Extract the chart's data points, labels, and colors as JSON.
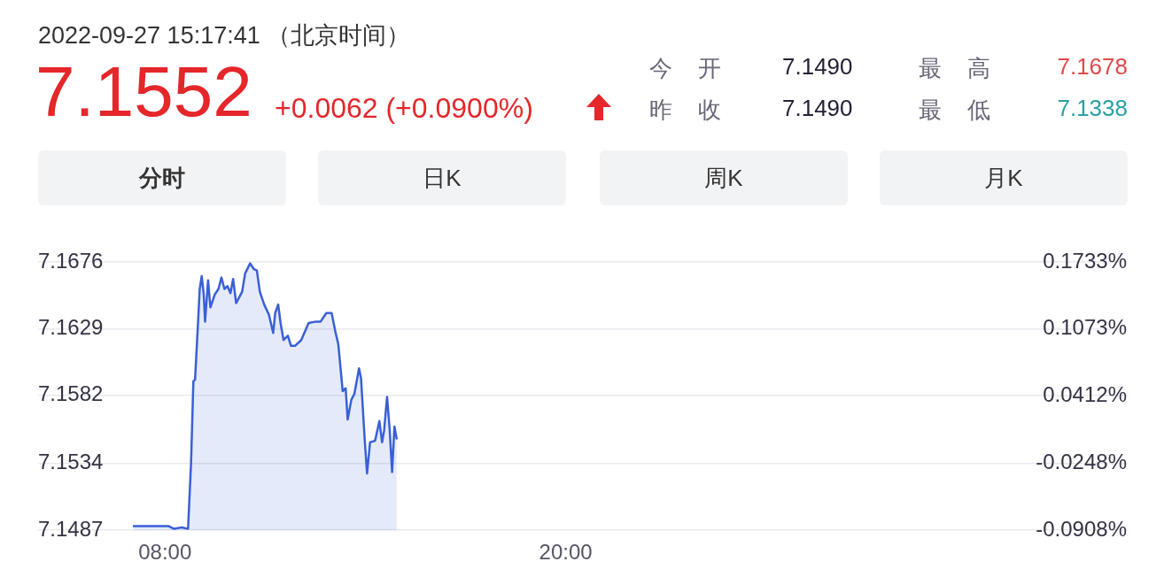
{
  "chart_data": {
    "type": "area",
    "title": "7.1552",
    "subtitle": "2022-09-27 15:17:41 （北京时间）",
    "annotations": [
      "+0.0062 (+0.0900%)",
      "今 开",
      "7.1490",
      "最 高",
      "7.1678",
      "昨 收",
      "7.1490",
      "最 低",
      "7.1338",
      "分时",
      "日K",
      "周K",
      "月K"
    ],
    "x": [
      7.04,
      8.1,
      8.27,
      8.5,
      8.69,
      8.78,
      8.85,
      8.9,
      8.98,
      9.04,
      9.1,
      9.16,
      9.2,
      9.29,
      9.36,
      9.49,
      9.6,
      9.69,
      9.78,
      9.87,
      9.96,
      10.04,
      10.13,
      10.22,
      10.31,
      10.4,
      10.55,
      10.66,
      10.75,
      10.84,
      10.97,
      11.11,
      11.24,
      11.3,
      11.39,
      11.46,
      11.55,
      11.68,
      11.77,
      11.9,
      12.08,
      12.3,
      12.52,
      12.66,
      12.83,
      12.99,
      13.1,
      13.19,
      13.32,
      13.41,
      13.47,
      13.58,
      13.67,
      13.81,
      13.87,
      13.98,
      14.05,
      14.14,
      14.29,
      14.42,
      14.5,
      14.56,
      14.65,
      14.73,
      14.8,
      14.87,
      14.94
    ],
    "series": [
      {
        "color": "#3a5fd6",
        "values": [
          7.149,
          7.149,
          7.1488,
          7.1489,
          7.1488,
          7.1534,
          7.1592,
          7.1593,
          7.1629,
          7.1657,
          7.1666,
          7.1653,
          7.1634,
          7.1663,
          7.1644,
          7.1653,
          7.1657,
          7.1665,
          7.1657,
          7.1659,
          7.1654,
          7.1664,
          7.1647,
          7.1651,
          7.1655,
          7.1668,
          7.1675,
          7.1671,
          7.167,
          7.1655,
          7.1646,
          7.1639,
          7.1626,
          7.164,
          7.1646,
          7.1633,
          7.1621,
          7.1624,
          7.1617,
          7.1617,
          7.1621,
          7.1633,
          7.1634,
          7.1634,
          7.164,
          7.164,
          7.1627,
          7.1618,
          7.1585,
          7.1587,
          7.1565,
          7.1579,
          7.1583,
          7.1601,
          7.1594,
          7.1551,
          7.1527,
          7.1549,
          7.155,
          7.1564,
          7.1549,
          7.1557,
          7.1581,
          7.1557,
          7.1528,
          7.156,
          7.1551
        ]
      }
    ],
    "xlim": [
      4.2,
      36.8
    ],
    "xticks": [
      {
        "value": 8,
        "label": "08:00"
      },
      {
        "value": 20,
        "label": "20:00"
      }
    ],
    "ylim": [
      7.1487,
      7.1676
    ],
    "yticks": [
      7.1487,
      7.1534,
      7.1582,
      7.1629,
      7.1676
    ],
    "y2lim": [
      -0.0908,
      0.1733
    ],
    "y2ticks": [
      {
        "value": -0.0908,
        "label": "-0.0908%"
      },
      {
        "value": -0.0248,
        "label": "-0.0248%"
      },
      {
        "value": 0.0412,
        "label": "0.0412%"
      },
      {
        "value": 0.1073,
        "label": "0.1073%"
      },
      {
        "value": 0.1733,
        "label": "0.1733%"
      }
    ],
    "grid": "y",
    "legend": false,
    "marker": "none",
    "line_style": "solid"
  }
}
